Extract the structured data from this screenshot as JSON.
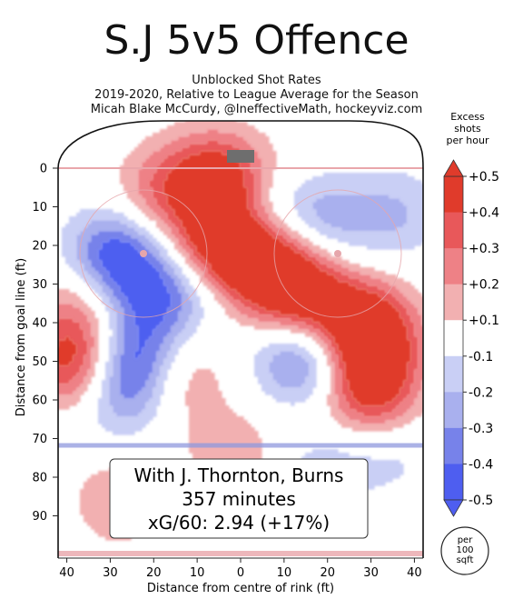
{
  "title": "S.J 5v5 Offence",
  "subtitle_lines": [
    "Unblocked Shot Rates",
    "2019-2020, Relative to League Average for the Season",
    "Micah Blake McCurdy, @IneffectiveMath, hockeyviz.com"
  ],
  "annotation": {
    "line1": "With J. Thornton, Burns",
    "line2": "357 minutes",
    "line3": "xG/60: 2.94 (+17%)"
  },
  "unit_badge": "per\n100\nsqft",
  "chart_data": {
    "type": "heatmap",
    "xlabel": "Distance from centre of rink (ft)",
    "ylabel": "Distance from goal line (ft)",
    "xlim": [
      42,
      -42
    ],
    "ylim": [
      -5,
      90
    ],
    "x_ticks": [
      "40",
      "30",
      "20",
      "10",
      "0",
      "10",
      "20",
      "30",
      "40"
    ],
    "y_ticks": [
      "0",
      "10",
      "20",
      "30",
      "40",
      "50",
      "60",
      "70",
      "80",
      "90"
    ],
    "colorbar": {
      "title": "Excess\nshots\nper hour",
      "ticks": [
        "+0.5",
        "+0.4",
        "+0.3",
        "+0.2",
        "+0.1",
        "-0.1",
        "-0.2",
        "-0.3",
        "-0.4",
        "-0.5"
      ],
      "colors": [
        "#e03b2b",
        "#e8585a",
        "#ee8186",
        "#f2b0b1",
        "#ffffff",
        "#c9cff5",
        "#a9b0ee",
        "#7782ea",
        "#4e5ef0"
      ]
    },
    "blobs": [
      {
        "x": 6,
        "y": 20,
        "v": 0.55
      },
      {
        "x": -4,
        "y": 24,
        "v": 0.45
      },
      {
        "x": -12,
        "y": 30,
        "v": 0.45
      },
      {
        "x": -30,
        "y": 42,
        "v": 0.55
      },
      {
        "x": -30,
        "y": 56,
        "v": 0.5
      },
      {
        "x": -20,
        "y": 38,
        "v": 0.35
      },
      {
        "x": 20,
        "y": 7,
        "v": 0.22
      },
      {
        "x": 10,
        "y": 2,
        "v": 0.25
      },
      {
        "x": 2,
        "y": 3,
        "v": 0.35
      },
      {
        "x": -16,
        "y": 5,
        "v": 0.15
      },
      {
        "x": 38,
        "y": 50,
        "v": 0.5
      },
      {
        "x": 36,
        "y": 33,
        "v": 0.3
      },
      {
        "x": 14,
        "y": 54,
        "v": 0.22
      },
      {
        "x": 28,
        "y": 86,
        "v": 0.2
      },
      {
        "x": 2,
        "y": 74,
        "v": 0.18
      },
      {
        "x": -16,
        "y": 67,
        "v": 0.1
      },
      {
        "x": -36,
        "y": 86,
        "v": 0.1
      },
      {
        "x": 28,
        "y": 22,
        "v": -0.4
      },
      {
        "x": 34,
        "y": 27,
        "v": -0.2
      },
      {
        "x": 20,
        "y": 34,
        "v": -0.32
      },
      {
        "x": 10,
        "y": 28,
        "v": -0.2
      },
      {
        "x": 25,
        "y": 50,
        "v": -0.45
      },
      {
        "x": 28,
        "y": 60,
        "v": -0.2
      },
      {
        "x": -14,
        "y": 50,
        "v": -0.4
      },
      {
        "x": -20,
        "y": 44,
        "v": -0.12
      },
      {
        "x": -18,
        "y": 8,
        "v": -0.22
      },
      {
        "x": -36,
        "y": 12,
        "v": -0.2
      },
      {
        "x": -20,
        "y": 16,
        "v": -0.15
      },
      {
        "x": -6,
        "y": 11,
        "v": -0.2
      },
      {
        "x": -18,
        "y": 76,
        "v": -0.2
      },
      {
        "x": -35,
        "y": 79,
        "v": -0.18
      }
    ]
  }
}
